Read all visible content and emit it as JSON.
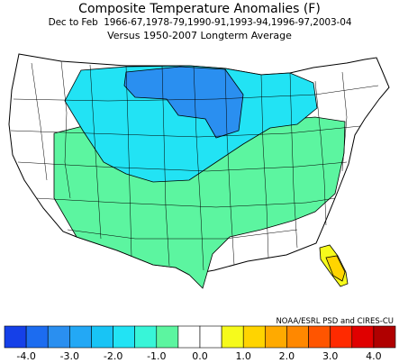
{
  "header": {
    "title": "Composite Temperature Anomalies (F)",
    "subtitle_period_label": "Dec to Feb",
    "subtitle_years": "1966-67,1978-79,1990-91,1993-94,1996-97,2003-04",
    "subtitle_baseline": "Versus 1950-2007 Longterm Average"
  },
  "credit": "NOAA/ESRL PSD and CIRES-CU",
  "colorbar": {
    "units": "F",
    "bins": [
      -4.5,
      -4.0,
      -3.5,
      -3.0,
      -2.5,
      -2.0,
      -1.5,
      -1.0,
      -0.5,
      0.0,
      0.5,
      1.0,
      1.5,
      2.0,
      2.5,
      3.0,
      3.5,
      4.0,
      4.5
    ],
    "colors": [
      "#1540e8",
      "#1c6cf0",
      "#2a8ff0",
      "#23a8f5",
      "#18c4f5",
      "#22e3f4",
      "#38f5d8",
      "#5cf5a0",
      "#ffffff",
      "#ffffff",
      "#f6fa1c",
      "#ffd400",
      "#ffaa00",
      "#ff8800",
      "#ff5500",
      "#ff2a00",
      "#e00000",
      "#b00000"
    ],
    "tick_labels": [
      "-4.0",
      "-3.0",
      "-2.0",
      "-1.0",
      "0.0",
      "1.0",
      "2.0",
      "3.0",
      "4.0"
    ]
  },
  "map_data": {
    "type": "choropleth",
    "region": "Contiguous United States climate divisions",
    "variable": "Temperature anomaly",
    "units": "F",
    "regions": [
      {
        "name": "Northern Plains / Upper Midwest core (MN, ND, SD, northern IA)",
        "anomaly": -3.0,
        "color": "#2a8ff0"
      },
      {
        "name": "Northern Rockies / Great Plains / Great Lakes",
        "anomaly": -2.0,
        "color": "#22e3f4"
      },
      {
        "name": "Southern Plains / Southwest / Southeast",
        "anomaly": -1.0,
        "color": "#5cf5a0"
      },
      {
        "name": "West Coast / Interior Northwest / Northeast",
        "anomaly": 0.0,
        "color": "#ffffff"
      },
      {
        "name": "Southern Florida",
        "anomaly": 1.0,
        "color": "#f6fa1c"
      },
      {
        "name": "Florida tip",
        "anomaly": 1.5,
        "color": "#ffd400"
      }
    ]
  }
}
